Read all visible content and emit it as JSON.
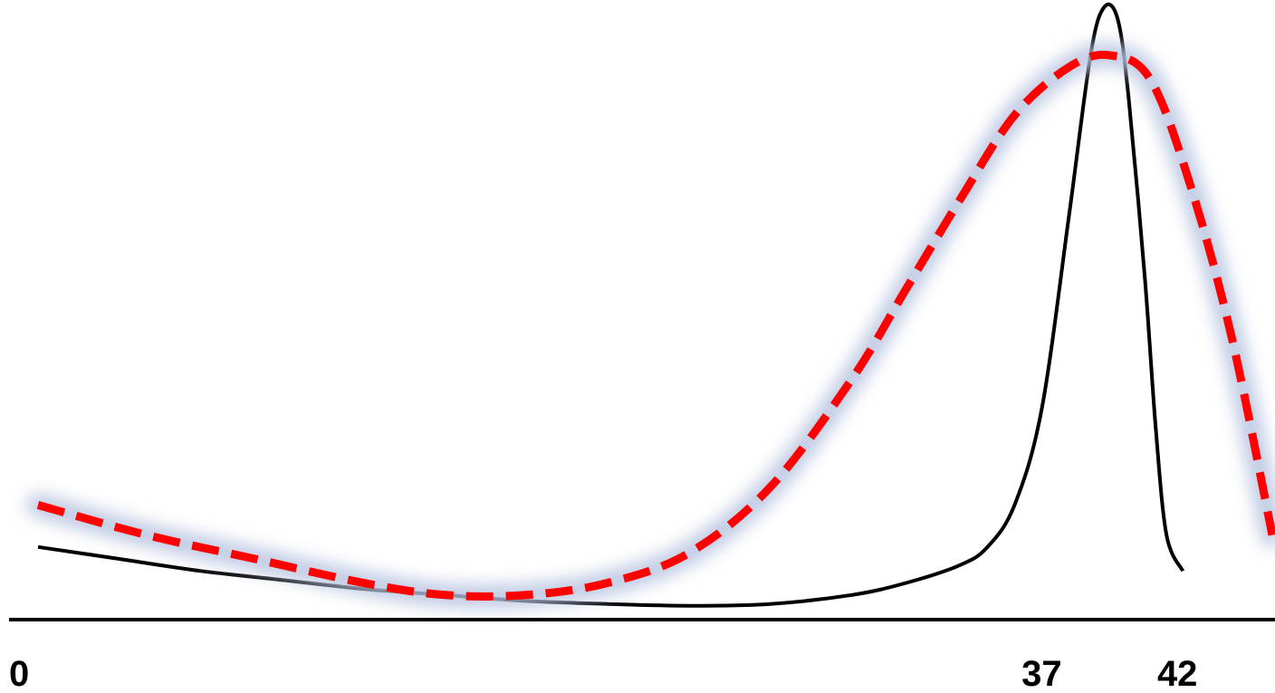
{
  "chart_data": {
    "type": "line",
    "title": "",
    "xlabel": "",
    "ylabel": "",
    "xlim": [
      0,
      46
    ],
    "ylim": [
      0,
      1
    ],
    "x_ticks": [
      {
        "value": 0,
        "label": "0"
      },
      {
        "value": 37,
        "label": "37"
      },
      {
        "value": 42,
        "label": "42"
      }
    ],
    "grid": false,
    "legend": "none",
    "series": [
      {
        "style": "solid",
        "color": "#000000",
        "x": [
          0,
          3,
          6,
          9,
          12,
          15,
          18,
          21,
          24,
          27,
          30,
          32,
          34,
          35,
          36,
          37,
          38,
          38.8,
          39.3,
          39.8,
          40.2,
          40.8,
          41.2,
          41.6,
          42.2
        ],
        "y": [
          0.1,
          0.08,
          0.06,
          0.045,
          0.03,
          0.02,
          0.01,
          0.005,
          0.002,
          0.005,
          0.02,
          0.04,
          0.07,
          0.1,
          0.17,
          0.33,
          0.65,
          0.92,
          1.0,
          0.98,
          0.85,
          0.55,
          0.3,
          0.12,
          0.06
        ]
      },
      {
        "style": "dashed",
        "color": "#ff0000",
        "glow": "#b8c4e0",
        "x": [
          0,
          4,
          8,
          12,
          15,
          18,
          21,
          24,
          27,
          30,
          32,
          34,
          36,
          38,
          39.5,
          41,
          42.5,
          44,
          45.5
        ],
        "y": [
          0.17,
          0.12,
          0.08,
          0.04,
          0.02,
          0.02,
          0.04,
          0.09,
          0.2,
          0.38,
          0.53,
          0.68,
          0.82,
          0.9,
          0.92,
          0.88,
          0.7,
          0.45,
          0.12
        ]
      }
    ]
  }
}
